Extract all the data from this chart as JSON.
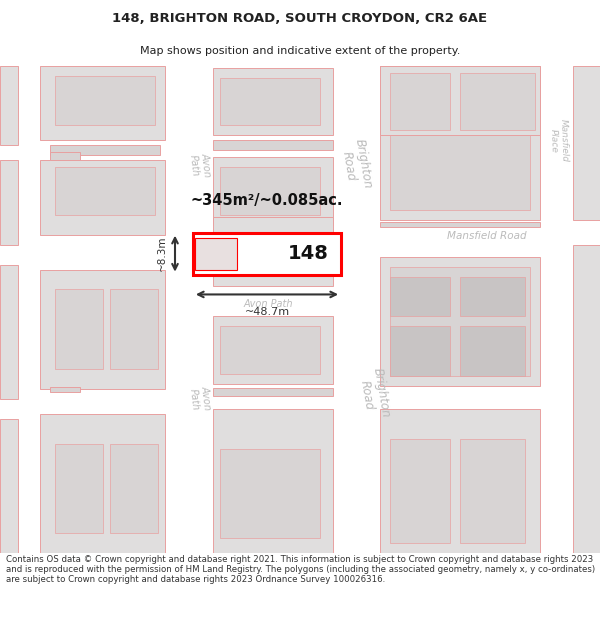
{
  "title": "148, BRIGHTON ROAD, SOUTH CROYDON, CR2 6AE",
  "subtitle": "Map shows position and indicative extent of the property.",
  "footer": "Contains OS data © Crown copyright and database right 2021. This information is subject to Crown copyright and database rights 2023 and is reproduced with the permission of HM Land Registry. The polygons (including the associated geometry, namely x, y co-ordinates) are subject to Crown copyright and database rights 2023 Ordnance Survey 100026316.",
  "bg_color": "#ffffff",
  "map_bg": "#ffffff",
  "building_fill": "#e0dede",
  "building_edge": "#e8a0a0",
  "highlight_fill": "#ffffff",
  "highlight_edge": "#ff0000",
  "road_label_color": "#bbbbbb",
  "title_fontsize": 9.5,
  "subtitle_fontsize": 8,
  "footer_fontsize": 6.2
}
